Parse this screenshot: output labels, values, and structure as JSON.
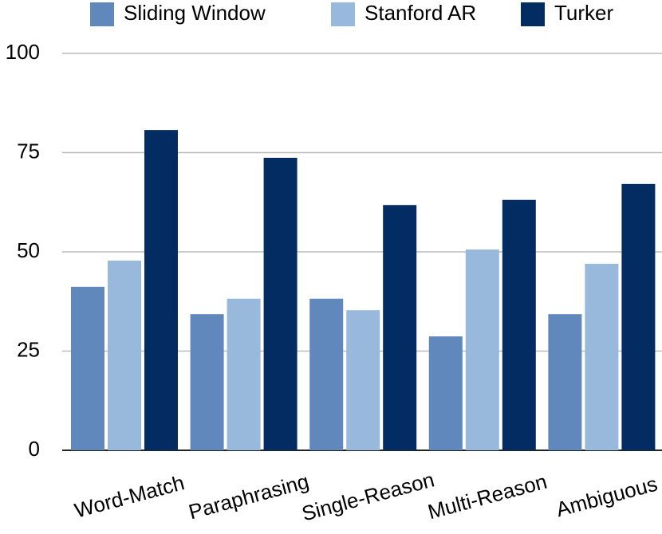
{
  "chart_data": {
    "type": "bar",
    "categories": [
      "Word-Match",
      "Paraphrasing",
      "Single-Reason",
      "Multi-Reason",
      "Ambiguous"
    ],
    "series": [
      {
        "name": "Sliding Window",
        "color": "#6088bd",
        "values": [
          41.2,
          34.3,
          38.2,
          28.7,
          34.3
        ]
      },
      {
        "name": "Stanford AR",
        "color": "#98b9dc",
        "values": [
          47.8,
          38.2,
          35.3,
          50.6,
          47.0
        ]
      },
      {
        "name": "Turker",
        "color": "#032c62",
        "values": [
          80.7,
          73.7,
          61.8,
          63.1,
          67.1
        ]
      }
    ],
    "ylim": [
      0,
      100
    ],
    "yticks": [
      0,
      25,
      50,
      75,
      100
    ],
    "grid": true
  }
}
